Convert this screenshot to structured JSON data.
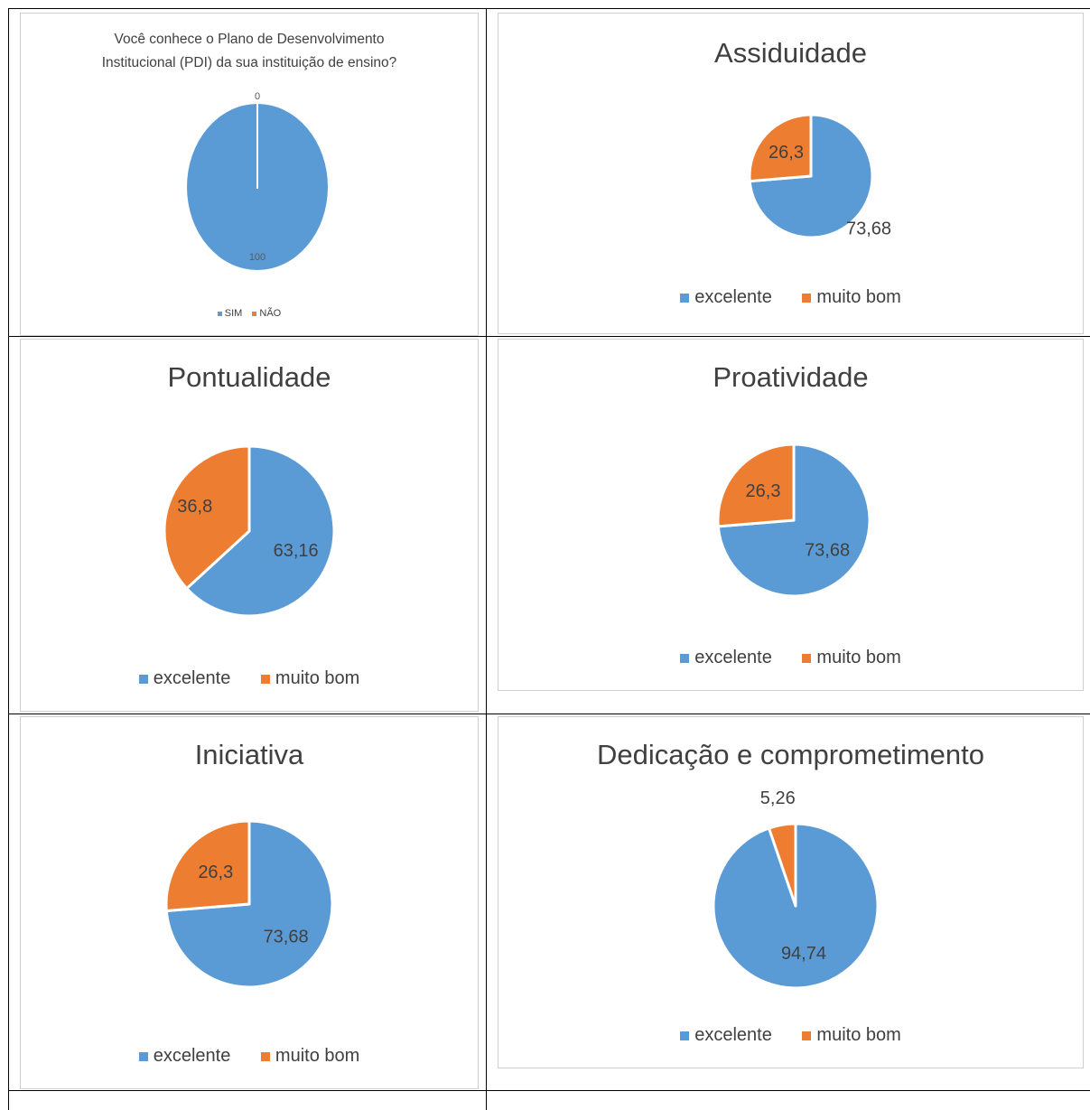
{
  "colors": {
    "excelente": "#5b9bd5",
    "muito_bom": "#ed7d31",
    "text": "#404040"
  },
  "chart_data": [
    {
      "type": "pie",
      "title": "Você conhece o Plano de Desenvolvimento Institucional (PDI) da sua instituição de ensino?",
      "title_lines": [
        "Você conhece o Plano de Desenvolvimento",
        "Institucional (PDI) da sua instituição de ensino?"
      ],
      "categories": [
        "SIM",
        "NÃO"
      ],
      "values": [
        100,
        0
      ],
      "data_labels": [
        "100",
        "0"
      ],
      "colors": [
        "#5b9bd5",
        "#ed7d31"
      ],
      "legend_position": "bottom"
    },
    {
      "type": "pie",
      "title": "Assiduidade",
      "categories": [
        "excelente",
        "muito bom"
      ],
      "values": [
        73.68,
        26.3
      ],
      "data_labels": [
        "73,68",
        "26,3"
      ],
      "colors": [
        "#5b9bd5",
        "#ed7d31"
      ],
      "legend_position": "bottom"
    },
    {
      "type": "pie",
      "title": "Pontualidade",
      "categories": [
        "excelente",
        "muito bom"
      ],
      "values": [
        63.16,
        36.8
      ],
      "data_labels": [
        "63,16",
        "36,8"
      ],
      "colors": [
        "#5b9bd5",
        "#ed7d31"
      ],
      "legend_position": "bottom"
    },
    {
      "type": "pie",
      "title": "Proatividade",
      "categories": [
        "excelente",
        "muito bom"
      ],
      "values": [
        73.68,
        26.3
      ],
      "data_labels": [
        "73,68",
        "26,3"
      ],
      "colors": [
        "#5b9bd5",
        "#ed7d31"
      ],
      "legend_position": "bottom"
    },
    {
      "type": "pie",
      "title": "Iniciativa",
      "categories": [
        "excelente",
        "muito bom"
      ],
      "values": [
        73.68,
        26.3
      ],
      "data_labels": [
        "73,68",
        "26,3"
      ],
      "colors": [
        "#5b9bd5",
        "#ed7d31"
      ],
      "legend_position": "bottom"
    },
    {
      "type": "pie",
      "title": "Dedicação e comprometimento",
      "categories": [
        "excelente",
        "muito bom"
      ],
      "values": [
        94.74,
        5.26
      ],
      "data_labels": [
        "94,74",
        "5,26"
      ],
      "colors": [
        "#5b9bd5",
        "#ed7d31"
      ],
      "legend_position": "bottom"
    }
  ]
}
